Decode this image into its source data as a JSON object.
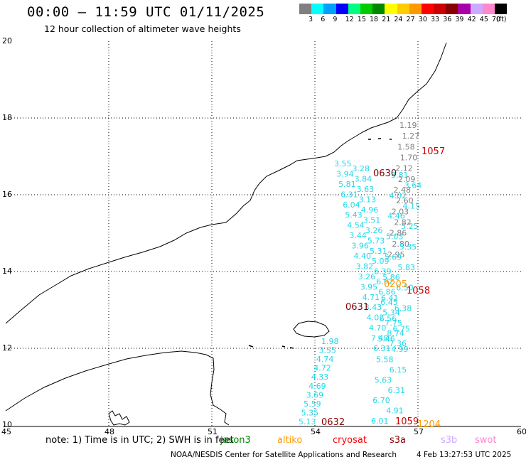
{
  "header": {
    "title": "00:00 – 11:59 UTC 01/11/2025",
    "subtitle": "12 hour collection of altimeter wave heights"
  },
  "colorbar": {
    "colors": [
      "#808080",
      "#00ffff",
      "#00a0ff",
      "#0000ff",
      "#00ff80",
      "#00cc00",
      "#008800",
      "#ffff00",
      "#ffcc00",
      "#ff9900",
      "#ff0000",
      "#cc0000",
      "#880000",
      "#aa00aa",
      "#ccaaff",
      "#ff88cc",
      "#000000"
    ],
    "labels": [
      "3",
      "6",
      "9",
      "12",
      "15",
      "18",
      "21",
      "24",
      "27",
      "30",
      "33",
      "36",
      "39",
      "42",
      "45",
      "70",
      "(ft)"
    ]
  },
  "axes": {
    "lat_ticks": [
      "20",
      "18",
      "16",
      "14",
      "12",
      "10"
    ],
    "lon_ticks": [
      "45",
      "48",
      "51",
      "54",
      "57",
      "60"
    ]
  },
  "passes": [
    {
      "time": "0630",
      "color": "#880000"
    },
    {
      "time": "1057",
      "color": "#cc0000"
    },
    {
      "time": "0205",
      "color": "#ff9900"
    },
    {
      "time": "1058",
      "color": "#cc0000"
    },
    {
      "time": "0631",
      "color": "#880000"
    },
    {
      "time": "0632",
      "color": "#880000"
    },
    {
      "time": "1059",
      "color": "#cc0000"
    },
    {
      "time": "1204",
      "color": "#ff9900"
    }
  ],
  "tracks": {
    "cyan_west": [
      "3.55",
      "3.28",
      "3.94",
      "3.84",
      "5.81",
      "3.63",
      "6.31",
      "3.13",
      "6.04",
      "4.96",
      "5.43",
      "3.51",
      "4.54",
      "3.26",
      "3.44",
      "5.73",
      "3.96",
      "5.31",
      "4.40",
      "5.09",
      "3.82",
      "6.39",
      "3.26",
      "6.92",
      "3.95",
      "6.86",
      "4.71",
      "6.45",
      "3.43",
      "5.34",
      "4.02",
      "7.75",
      "4.70",
      "8.74",
      "7.48",
      "7.36",
      "6.31"
    ],
    "cyan_south": [
      "1.98",
      "3.55",
      "4.74",
      "4.72",
      "4.33",
      "4.69",
      "3.69",
      "5.59",
      "5.35",
      "5.13"
    ],
    "gray_track": [
      "1.19",
      "1.27",
      "1.58",
      "1.70",
      "2.12",
      "2.09",
      "2.48",
      "2.60",
      "2.03",
      "2.82",
      "2.86",
      "2.80",
      "2.95"
    ],
    "cyan_east": [
      "3.81",
      "3.64",
      "4.02",
      "4.15",
      "4.46",
      "5.25",
      "5.03",
      "5.35",
      "5.69",
      "5.83",
      "5.86",
      "6.50",
      "6.41",
      "6.38",
      "6.56",
      "6.75",
      "5.46",
      "4.99",
      "5.58",
      "6.15",
      "5.63",
      "6.31",
      "6.70",
      "4.91",
      "6.01"
    ]
  },
  "legend": {
    "note": "note: 1) Time is in UTC; 2) SWH is in feet",
    "satellites": [
      {
        "name": "jason3",
        "color": "#008800"
      },
      {
        "name": "altiko",
        "color": "#ff9900"
      },
      {
        "name": "cryosat",
        "color": "#ff0000"
      },
      {
        "name": "s3a",
        "color": "#880000"
      },
      {
        "name": "s3b",
        "color": "#ccaaff"
      },
      {
        "name": "swot",
        "color": "#ff88cc"
      }
    ]
  },
  "footer": {
    "credit": "NOAA/NESDIS Center for Satellite Applications and Research",
    "timestamp": "4 Feb 13:27:53 UTC 2025"
  }
}
